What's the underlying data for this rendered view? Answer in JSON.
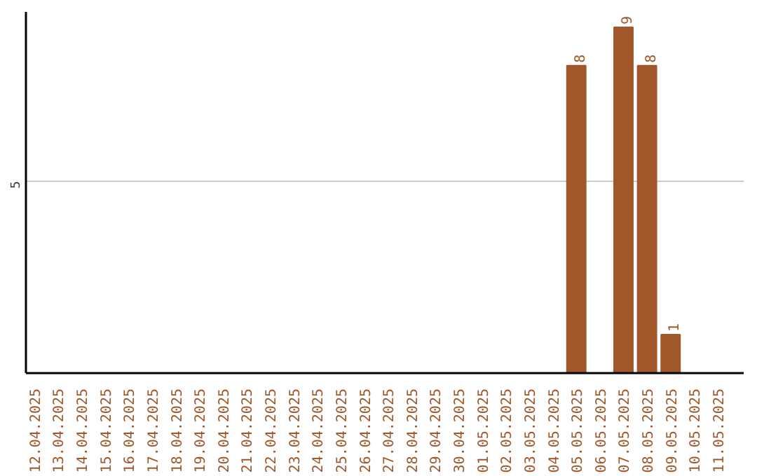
{
  "chart_data": {
    "type": "bar",
    "categories": [
      "12.04.2025",
      "13.04.2025",
      "14.04.2025",
      "15.04.2025",
      "16.04.2025",
      "17.04.2025",
      "18.04.2025",
      "19.04.2025",
      "20.04.2025",
      "21.04.2025",
      "22.04.2025",
      "23.04.2025",
      "24.04.2025",
      "25.04.2025",
      "26.04.2025",
      "27.04.2025",
      "28.04.2025",
      "29.04.2025",
      "30.04.2025",
      "01.05.2025",
      "02.05.2025",
      "03.05.2025",
      "04.05.2025",
      "05.05.2025",
      "06.05.2025",
      "07.05.2025",
      "08.05.2025",
      "09.05.2025",
      "10.05.2025",
      "11.05.2025"
    ],
    "values": [
      null,
      null,
      null,
      null,
      null,
      null,
      null,
      null,
      null,
      null,
      null,
      null,
      null,
      null,
      null,
      null,
      null,
      null,
      null,
      null,
      null,
      null,
      null,
      8,
      null,
      9,
      8,
      1,
      null,
      null
    ],
    "data_labels": true,
    "color": "#a0572a",
    "ylim": [
      0,
      9.4
    ],
    "yticks": [
      5
    ],
    "grid": "y"
  }
}
